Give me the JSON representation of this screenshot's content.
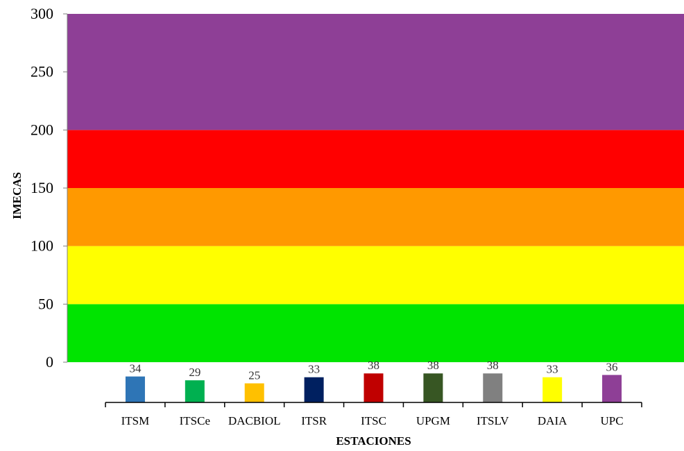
{
  "chart_data": {
    "type": "bar",
    "title": "",
    "xlabel": "ESTACIONES",
    "ylabel": "IMECAS",
    "ylim": [
      0,
      300
    ],
    "yticks": [
      "0",
      "50",
      "100",
      "150",
      "200",
      "250",
      "300"
    ],
    "categories": [
      "ITSM",
      "ITSCe",
      "DACBIOL",
      "ITSR",
      "ITSC",
      "UPGM",
      "ITSLV",
      "DAIA",
      "UPC"
    ],
    "values": [
      34,
      29,
      25,
      33,
      38,
      38,
      38,
      33,
      36
    ],
    "value_labels": [
      "34",
      "29",
      "25",
      "33",
      "38",
      "38",
      "38",
      "33",
      "36"
    ],
    "bar_colors": [
      "#2e75b6",
      "#00b050",
      "#ffc000",
      "#002060",
      "#c00000",
      "#375623",
      "#808080",
      "#ffff00",
      "#8e3f96"
    ],
    "background_bands": [
      {
        "from": 0,
        "to": 50,
        "color": "#00e400"
      },
      {
        "from": 50,
        "to": 100,
        "color": "#ffff00"
      },
      {
        "from": 100,
        "to": 150,
        "color": "#ff9900"
      },
      {
        "from": 150,
        "to": 200,
        "color": "#ff0000"
      },
      {
        "from": 200,
        "to": 300,
        "color": "#8e3f96"
      }
    ],
    "grid": false,
    "legend": "none"
  }
}
